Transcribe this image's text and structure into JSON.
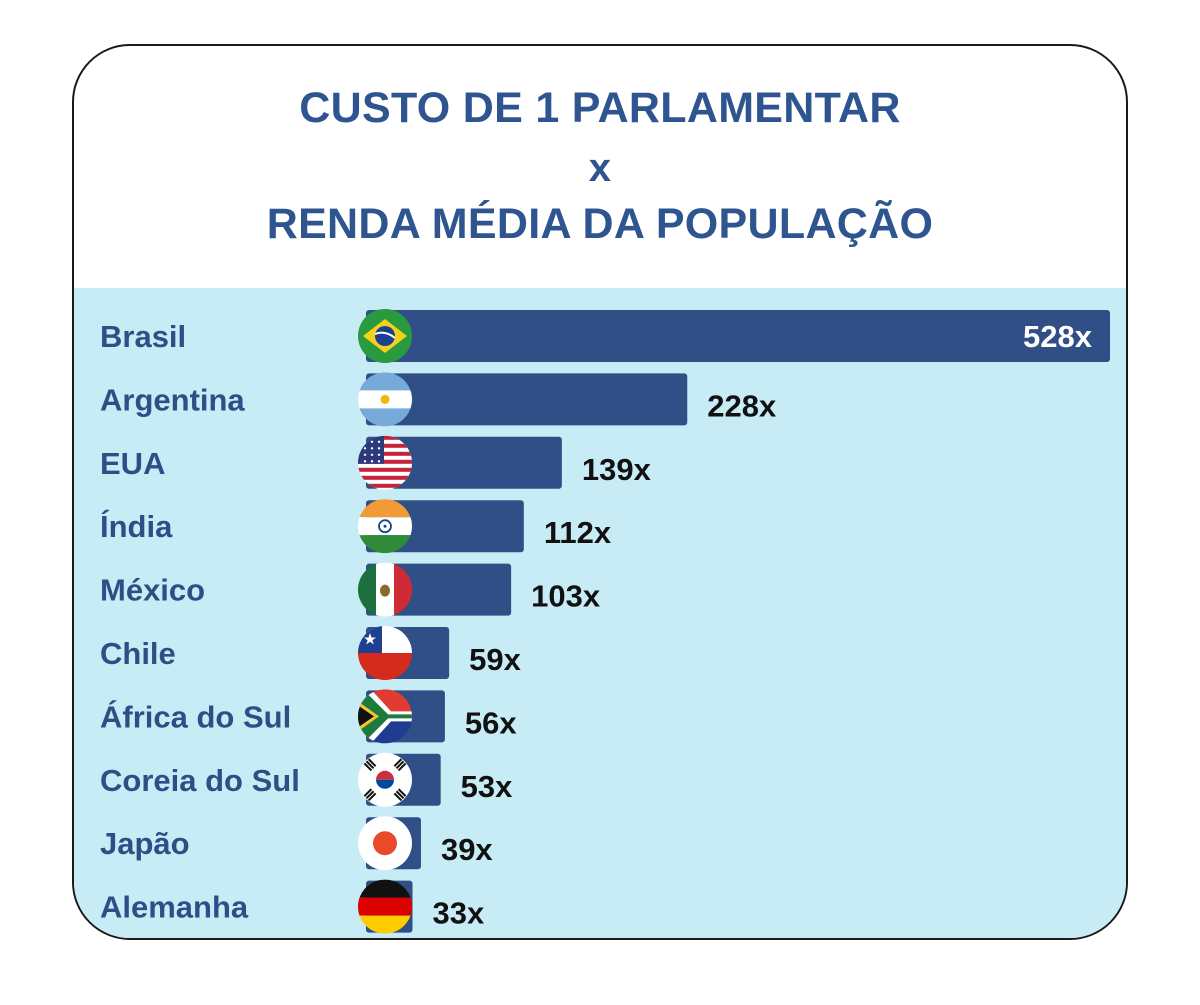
{
  "title": {
    "line1": "CUSTO DE 1 PARLAMENTAR",
    "line2": "x",
    "line3": "RENDA MÉDIA DA POPULAÇÃO"
  },
  "colors": {
    "title": "#2e5590",
    "background": "#c8ecf6",
    "bar": "#2f4f86",
    "country_label": "#2e4f86",
    "value_label": "#111111"
  },
  "chart_data": {
    "type": "bar",
    "orientation": "horizontal",
    "title": "CUSTO DE 1 PARLAMENTAR x RENDA MÉDIA DA POPULAÇÃO",
    "categories": [
      "Brasil",
      "Argentina",
      "EUA",
      "Índia",
      "México",
      "Chile",
      "África do Sul",
      "Coreia do Sul",
      "Japão",
      "Alemanha"
    ],
    "values": [
      528,
      228,
      139,
      112,
      103,
      59,
      56,
      53,
      39,
      33
    ],
    "value_labels": [
      "528x",
      "228x",
      "139x",
      "112x",
      "103x",
      "59x",
      "56x",
      "53x",
      "39x",
      "33x"
    ],
    "flags": [
      "brazil-flag-icon",
      "argentina-flag-icon",
      "usa-flag-icon",
      "india-flag-icon",
      "mexico-flag-icon",
      "chile-flag-icon",
      "south-africa-flag-icon",
      "south-korea-flag-icon",
      "japan-flag-icon",
      "germany-flag-icon"
    ],
    "grid": false,
    "legend": "none"
  }
}
